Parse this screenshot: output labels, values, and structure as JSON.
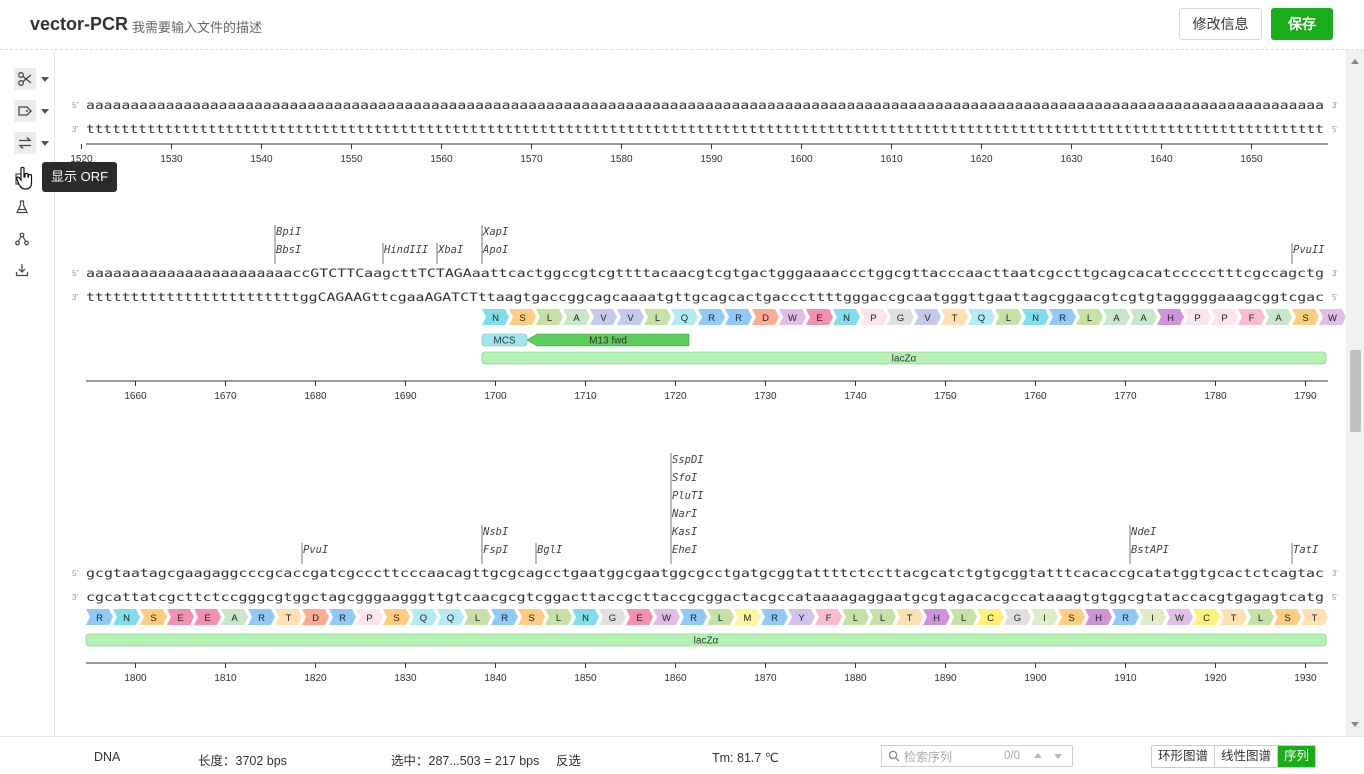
{
  "header": {
    "title": "vector-PCR",
    "description": "我需要输入文件的描述",
    "edit_label": "修改信息",
    "save_label": "保存"
  },
  "toolbar": {
    "tools": [
      {
        "name": "scissors-icon",
        "has_menu": true
      },
      {
        "name": "tag-icon",
        "has_menu": true
      },
      {
        "name": "swap-icon",
        "has_menu": true
      },
      {
        "name": "orf-icon",
        "has_menu": false
      },
      {
        "name": "flask-icon",
        "has_menu": false
      },
      {
        "name": "nodes-icon",
        "has_menu": false
      },
      {
        "name": "download-icon",
        "has_menu": false
      }
    ],
    "tooltip": "显示 ORF"
  },
  "sequence_view": {
    "strand_labels": {
      "five": "5'",
      "three": "3'"
    },
    "rows": [
      {
        "start": 1521,
        "top": "aaaaaaaaaaaaaaaaaaaaaaaaaaaaaaaaaaaaaaaaaaaaaaaaaaaaaaaaaaaaaaaaaaaaaaaaaaaaaaaaaaaaaaaaaaaaaaaaaaaaaaaaaaaaaaaaaaaaaaaaaaaaaaaaaaaaaaaaaaaa",
        "bottom": "tttttttttttttttttttttttttttttttttttttttttttttttttttttttttttttttttttttttttttttttttttttttttttttttttttttttttttttttttttttttttttttttttttttttttttttt",
        "ticks": [
          "1520",
          "1530",
          "1540",
          "1550",
          "1560",
          "1570",
          "1580",
          "1590",
          "1600",
          "1610",
          "1620",
          "1630",
          "1640",
          "1650"
        ],
        "enzymes": [],
        "translation": [],
        "features": []
      },
      {
        "start": 1655,
        "top": "aaaaaaaaaaaaaaaaaaaaaaaccGTCTTCaagcttTCTAGAaattcactggccgtcgttttacaacgtcgtgactgggaaaaccctggcgttacccaacttaatcgccttgcagcacatccccctttcgccagctg",
        "bottom": "ttttttttttttttttttttttttggCAGAAGttcgaaAGATCTttaagtgaccggcagcaaaatgttgcagcactgacccttttgggaccgcaatgggttgaattagcggaacgtcgtgtagggggaaagcggtcgac",
        "ticks": [
          "1660",
          "1670",
          "1680",
          "1690",
          "1700",
          "1710",
          "1720",
          "1730",
          "1740",
          "1750",
          "1760",
          "1770",
          "1780",
          "1790"
        ],
        "enzymes": [
          {
            "pos": 1676,
            "names": [
              "BpiI",
              "BbsI"
            ]
          },
          {
            "pos": 1688,
            "names": [
              "HindIII"
            ]
          },
          {
            "pos": 1694,
            "names": [
              "XbaI"
            ]
          },
          {
            "pos": 1699,
            "names": [
              "XapI",
              "ApoI"
            ]
          },
          {
            "pos": 1789,
            "names": [
              "PvuII"
            ]
          }
        ],
        "translation": {
          "start": 1699,
          "aa": "NSLAVVLQRRDWENPGVTQLNRLAAHPPFASW"
        },
        "features": [
          {
            "name": "MCS",
            "start": 1699,
            "end": 1704,
            "color": "#9ee6f2",
            "type": "box"
          },
          {
            "name": "M13 fwd",
            "start": 1704,
            "end": 1722,
            "color": "#5ccc5c",
            "type": "arrow-left"
          },
          {
            "name": "lacZα",
            "start": 1699,
            "end": 1795,
            "color": "#b3f2b3",
            "type": "box",
            "lane": 2
          }
        ]
      },
      {
        "start": 1795,
        "top": "gcgtaatagcgaagaggcccgcaccgatcgcccttcccaacagttgcgcagcctgaatggcgaatggcgcctgatgcggtattttctccttacgcatctgtgcggtatttcacaccgcatatggtgcactctcagtac",
        "bottom": "cgcattatcgcttctccgggcgtggctagcgggaagggttgtcaacgcgtcggacttaccgcttaccgcggactacgccataaaagaggaatgcgtagacacgccataaagtgtggcgtataccacgtgagagtcatg",
        "ticks": [
          "1800",
          "1810",
          "1820",
          "1830",
          "1840",
          "1850",
          "1860",
          "1870",
          "1880",
          "1890",
          "1900",
          "1910",
          "1920",
          "1930"
        ],
        "enzymes": [
          {
            "pos": 1819,
            "names": [
              "PvuI"
            ]
          },
          {
            "pos": 1839,
            "names": [
              "NsbI",
              "FspI"
            ]
          },
          {
            "pos": 1845,
            "names": [
              "BglI"
            ]
          },
          {
            "pos": 1860,
            "names": [
              "SspDI",
              "SfoI",
              "PluTI",
              "NarI",
              "KasI",
              "EheI"
            ]
          },
          {
            "pos": 1911,
            "names": [
              "NdeI",
              "BstAPI"
            ]
          },
          {
            "pos": 1929,
            "names": [
              "TatI"
            ]
          }
        ],
        "translation": {
          "start": 1795,
          "aa": "RNSEEARTDRPSQQLRSLNGEWRLMRYFLLTHLCGISHRIWCTLST"
        },
        "features": [
          {
            "name": "lacZα",
            "start": 1795,
            "end": 1933,
            "color": "#b3f2b3",
            "type": "box",
            "lane": 1
          }
        ]
      }
    ],
    "aa_colors": {
      "A": "#c8e6c9",
      "R": "#90caf9",
      "N": "#80deea",
      "D": "#ffab91",
      "C": "#fff176",
      "Q": "#b2ebf2",
      "E": "#f48fb1",
      "G": "#e0e0e0",
      "H": "#ce93d8",
      "I": "#dcedc8",
      "L": "#c5e1a5",
      "K": "#bbdefb",
      "M": "#fff59d",
      "F": "#f8bbd0",
      "P": "#fce4ec",
      "S": "#ffcc80",
      "T": "#ffe0b2",
      "W": "#e1bee7",
      "Y": "#d1c4e9",
      "V": "#c5cae9"
    }
  },
  "status": {
    "type": "DNA",
    "length": "长度：3702 bps",
    "selection": "选中：287...503 = 217 bps",
    "invert": "反选",
    "tm": "Tm: 81.7 ℃",
    "search_placeholder": "检索序列",
    "search_count": "0/0",
    "views": [
      {
        "label": "环形图谱",
        "active": false
      },
      {
        "label": "线性图谱",
        "active": false
      },
      {
        "label": "序列",
        "active": true
      }
    ]
  }
}
